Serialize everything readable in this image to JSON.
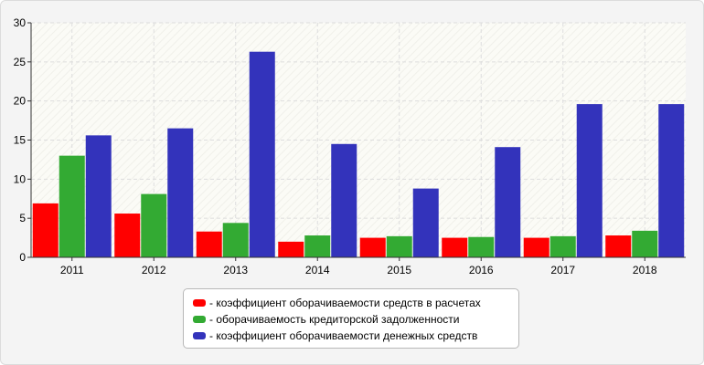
{
  "chart_data": {
    "type": "bar",
    "categories": [
      "2011",
      "2012",
      "2013",
      "2014",
      "2015",
      "2016",
      "2017",
      "2018"
    ],
    "series": [
      {
        "name": "- коэффициент оборачиваемости средств в расчетах",
        "color": "#ff0000",
        "values": [
          6.9,
          5.6,
          3.3,
          2.0,
          2.5,
          2.5,
          2.5,
          2.8
        ]
      },
      {
        "name": "- оборачиваемость кредиторской задолженности",
        "color": "#33aa33",
        "values": [
          13.0,
          8.1,
          4.4,
          2.8,
          2.7,
          2.6,
          2.7,
          3.4
        ]
      },
      {
        "name": "- коэффициент оборачиваемости денежных средств",
        "color": "#3333bb",
        "values": [
          15.6,
          16.5,
          26.3,
          14.5,
          8.8,
          14.1,
          19.6,
          19.6
        ]
      }
    ],
    "ylim": [
      0,
      30
    ],
    "yticks": [
      0,
      5,
      10,
      15,
      20,
      25,
      30
    ],
    "grid": true,
    "legend_position": "bottom"
  }
}
